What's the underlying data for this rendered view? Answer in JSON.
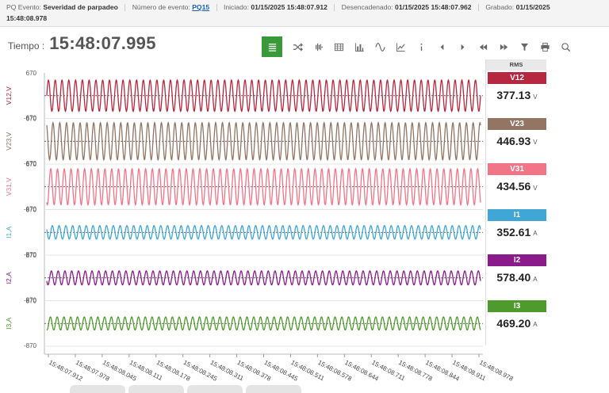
{
  "info": {
    "pq_label": "PQ Evento:",
    "pq_value": "Severidad de parpadeo",
    "event_label": "Número de evento:",
    "event_value": "PQ15",
    "started_label": "Iniciado:",
    "started_value": "01/15/2025 15:48:07.912",
    "triggered_label": "Desencadenado:",
    "triggered_value": "01/15/2025 15:48:07.962",
    "recorded_label": "Grabado:",
    "recorded_value_line1": "01/15/2025",
    "recorded_value_line2": "15:48:08.978"
  },
  "tiempo": {
    "label": "Tiempo :",
    "value": "15:48:07.995"
  },
  "toolbar": {
    "buttons": [
      {
        "name": "lines-icon",
        "active": true
      },
      {
        "name": "shuffle-icon"
      },
      {
        "name": "waveform-icon"
      },
      {
        "name": "table-icon"
      },
      {
        "name": "bar-chart-icon"
      },
      {
        "name": "sine-icon"
      },
      {
        "name": "line-chart-icon"
      },
      {
        "name": "info-icon"
      },
      {
        "name": "arrow-left-icon"
      },
      {
        "name": "arrow-right-icon"
      },
      {
        "name": "fast-backward-icon"
      },
      {
        "name": "fast-forward-icon"
      },
      {
        "name": "filter-icon"
      },
      {
        "name": "print-icon"
      },
      {
        "name": "zoom-icon"
      }
    ]
  },
  "rms": {
    "header": "RMS",
    "items": [
      {
        "name": "V12",
        "value": "377.13",
        "unit": "V",
        "color": "#b5283f"
      },
      {
        "name": "V23",
        "value": "446.93",
        "unit": "V",
        "color": "#927562"
      },
      {
        "name": "V31",
        "value": "434.56",
        "unit": "V",
        "color": "#f27487"
      },
      {
        "name": "I1",
        "value": "352.61",
        "unit": "A",
        "color": "#3fa6d6"
      },
      {
        "name": "I2",
        "value": "578.40",
        "unit": "A",
        "color": "#8b1a8b"
      },
      {
        "name": "I3",
        "value": "469.20",
        "unit": "A",
        "color": "#4f9a2c"
      }
    ]
  },
  "chart_data": {
    "type": "line",
    "x_ticks": [
      "15:48:07.912",
      "15:48:07.978",
      "15:48:08.045",
      "15:48:08.111",
      "15:48:08.178",
      "15:48:08.245",
      "15:48:08.311",
      "15:48:08.378",
      "15:48:08.445",
      "15:48:08.511",
      "15:48:08.578",
      "15:48:08.644",
      "15:48:08.711",
      "15:48:08.778",
      "15:48:08.844",
      "15:48:08.911",
      "15:48:08.978"
    ],
    "x_range_seconds": [
      0,
      1.066
    ],
    "cycles": 64,
    "cursor_time": "15:48:07.995",
    "series": [
      {
        "name": "V12",
        "ylabel": "V12,V",
        "ymax_label": "670",
        "ymin_label": "-670",
        "color": "#b5283f",
        "amplitude": 533,
        "disturbance": 0.35,
        "type": "voltage"
      },
      {
        "name": "V23",
        "ylabel": "V23,V",
        "ymax_label": "670",
        "ymin_label": "-670",
        "color": "#927562",
        "amplitude": 632,
        "disturbance": 0.35,
        "type": "voltage"
      },
      {
        "name": "V31",
        "ylabel": "V31,V",
        "ymax_label": "670",
        "ymin_label": "-670",
        "color": "#f27487",
        "amplitude": 614,
        "disturbance": 0.35,
        "type": "voltage"
      },
      {
        "name": "I1",
        "ylabel": "I1,A",
        "ymax_label": "870",
        "ymin_label": "-870",
        "color": "#3fa6d6",
        "amplitude": 300,
        "disturbance": 2.2,
        "type": "current"
      },
      {
        "name": "I2",
        "ylabel": "I2,A",
        "ymax_label": "870",
        "ymin_label": "-870",
        "color": "#8b1a8b",
        "amplitude": 310,
        "disturbance": 2.3,
        "type": "current"
      },
      {
        "name": "I3",
        "ylabel": "I3,A",
        "ymax_label": "870",
        "ymin_label": "-870",
        "color": "#4f9a2c",
        "amplitude": 290,
        "disturbance": 2.3,
        "type": "current"
      }
    ]
  }
}
